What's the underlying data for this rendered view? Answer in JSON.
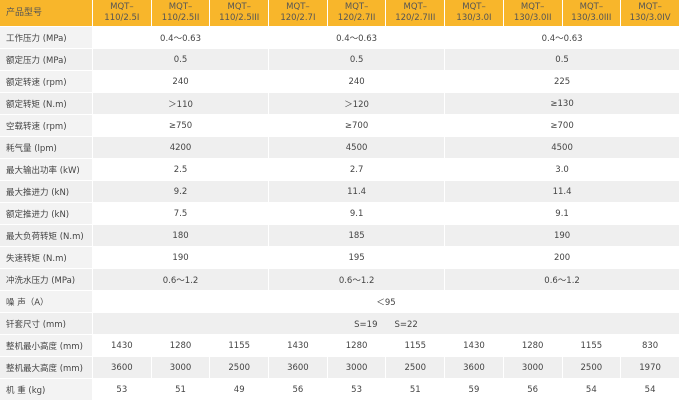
{
  "header_label": "产品型号",
  "accent_color": "#f8b62b",
  "models": [
    "MQT–\n110/2.5I",
    "MQT–\n110/2.5II",
    "MQT–\n110/2.5III",
    "MQT–\n120/2.7I",
    "MQT–\n120/2.7II",
    "MQT–\n120/2.7III",
    "MQT–\n130/3.0I",
    "MQT–\n130/3.0II",
    "MQT–\n130/3.0III",
    "MQT–\n130/3.0IV"
  ],
  "rows": [
    {
      "label": "工作压力 (MPa)",
      "spans": [
        3,
        3,
        4
      ],
      "values": [
        "0.4～0.63",
        "0.4～0.63",
        "0.4～0.63"
      ]
    },
    {
      "label": "额定压力 (MPa)",
      "spans": [
        3,
        3,
        4
      ],
      "values": [
        "0.5",
        "0.5",
        "0.5"
      ]
    },
    {
      "label": "额定转速 (rpm)",
      "spans": [
        3,
        3,
        4
      ],
      "values": [
        "240",
        "240",
        "225"
      ]
    },
    {
      "label": "额定转矩 (N.m)",
      "spans": [
        3,
        3,
        4
      ],
      "values": [
        "＞110",
        "＞120",
        "≥130"
      ]
    },
    {
      "label": "空载转速 (rpm)",
      "spans": [
        3,
        3,
        4
      ],
      "values": [
        "≥750",
        "≥700",
        "≥700"
      ]
    },
    {
      "label": "耗气量 (lpm)",
      "spans": [
        3,
        3,
        4
      ],
      "values": [
        "4200",
        "4500",
        "4500"
      ]
    },
    {
      "label": "最大输出功率 (kW)",
      "spans": [
        3,
        3,
        4
      ],
      "values": [
        "2.5",
        "2.7",
        "3.0"
      ]
    },
    {
      "label": "最大推进力 (kN)",
      "spans": [
        3,
        3,
        4
      ],
      "values": [
        "9.2",
        "11.4",
        "11.4"
      ]
    },
    {
      "label": "额定推进力 (kN)",
      "spans": [
        3,
        3,
        4
      ],
      "values": [
        "7.5",
        "9.1",
        "9.1"
      ]
    },
    {
      "label": "最大负荷转矩 (N.m)",
      "spans": [
        3,
        3,
        4
      ],
      "values": [
        "180",
        "185",
        "190"
      ]
    },
    {
      "label": "失速转矩 (N.m)",
      "spans": [
        3,
        3,
        4
      ],
      "values": [
        "190",
        "195",
        "200"
      ]
    },
    {
      "label": "冲洗水压力 (MPa)",
      "spans": [
        3,
        3,
        4
      ],
      "values": [
        "0.6～1.2",
        "0.6～1.2",
        "0.6～1.2"
      ]
    },
    {
      "label": "噪 声（A）",
      "spans": [
        10
      ],
      "values": [
        "＜95"
      ]
    },
    {
      "label": "钎套尺寸 (mm)",
      "spans": [
        10
      ],
      "values": [
        "S=19　　S=22"
      ]
    },
    {
      "label": "整机最小高度 (mm)",
      "spans": [
        1,
        1,
        1,
        1,
        1,
        1,
        1,
        1,
        1,
        1
      ],
      "values": [
        "1430",
        "1280",
        "1155",
        "1430",
        "1280",
        "1155",
        "1430",
        "1280",
        "1155",
        "830"
      ]
    },
    {
      "label": "整机最大高度 (mm)",
      "spans": [
        1,
        1,
        1,
        1,
        1,
        1,
        1,
        1,
        1,
        1
      ],
      "values": [
        "3600",
        "3000",
        "2500",
        "3600",
        "3000",
        "2500",
        "3600",
        "3000",
        "2500",
        "1970"
      ]
    },
    {
      "label": "机 重 (kg)",
      "spans": [
        1,
        1,
        1,
        1,
        1,
        1,
        1,
        1,
        1,
        1
      ],
      "values": [
        "53",
        "51",
        "49",
        "56",
        "53",
        "51",
        "59",
        "56",
        "54",
        "54"
      ]
    }
  ]
}
